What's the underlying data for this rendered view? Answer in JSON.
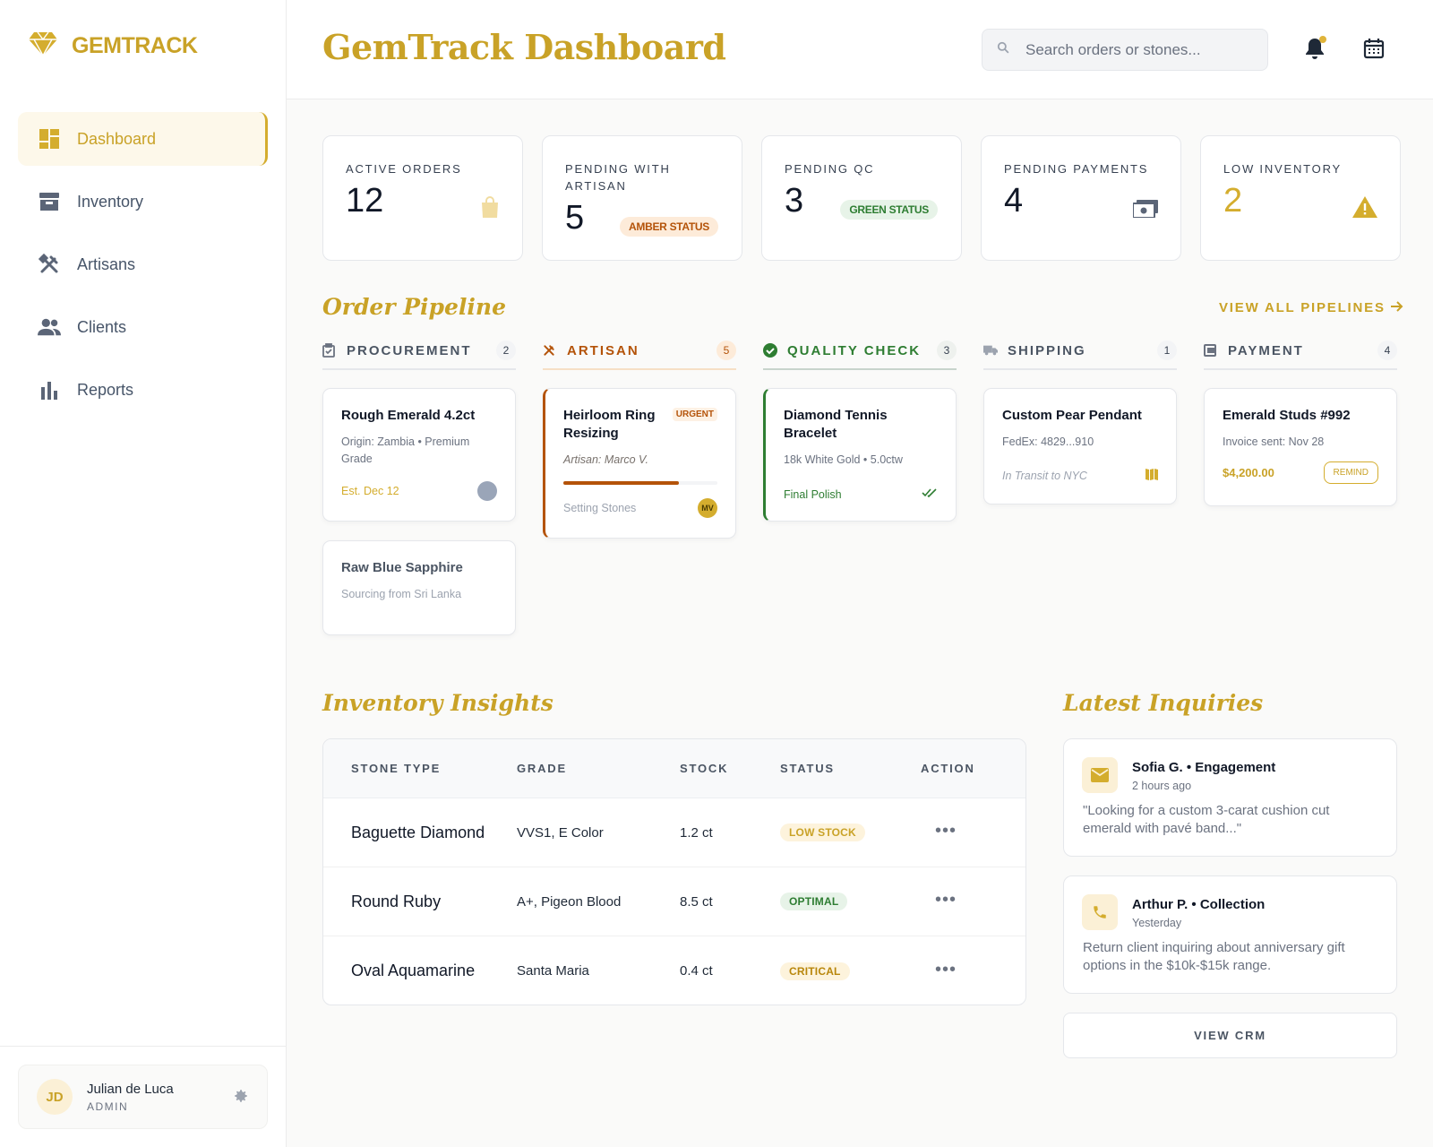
{
  "brand": {
    "name": "GEMTRACK",
    "accent": "#c9a227"
  },
  "sidebar": {
    "items": [
      {
        "label": "Dashboard",
        "icon": "dashboard-icon",
        "active": true
      },
      {
        "label": "Inventory",
        "icon": "archive-icon"
      },
      {
        "label": "Artisans",
        "icon": "tools-icon"
      },
      {
        "label": "Clients",
        "icon": "users-icon"
      },
      {
        "label": "Reports",
        "icon": "bar-chart-icon"
      }
    ],
    "user": {
      "initials": "JD",
      "name": "Julian de Luca",
      "role": "ADMIN"
    }
  },
  "header": {
    "title": "GemTrack Dashboard",
    "search_placeholder": "Search orders or stones..."
  },
  "stats": [
    {
      "label": "ACTIVE ORDERS",
      "value": "12",
      "icon": "shopping-bag-icon"
    },
    {
      "label": "PENDING WITH ARTISAN",
      "value": "5",
      "badge": "AMBER STATUS"
    },
    {
      "label": "PENDING QC",
      "value": "3",
      "badge": "GREEN STATUS"
    },
    {
      "label": "PENDING PAYMENTS",
      "value": "4",
      "icon": "cash-icon"
    },
    {
      "label": "LOW INVENTORY",
      "value": "2",
      "icon": "warning-icon"
    }
  ],
  "pipeline": {
    "title": "Order Pipeline",
    "view_all": "VIEW ALL PIPELINES",
    "columns": [
      {
        "label": "PROCUREMENT",
        "count": "2",
        "color": "#4b5563",
        "cards": [
          {
            "title": "Rough Emerald 4.2ct",
            "sub": "Origin: Zambia • Premium Grade",
            "foot": "Est. Dec 12"
          },
          {
            "title": "Raw Blue Sapphire",
            "sub": "Sourcing from Sri Lanka"
          }
        ]
      },
      {
        "label": "ARTISAN",
        "count": "5",
        "color": "#b45309",
        "cards": [
          {
            "title": "Heirloom Ring Resizing",
            "tag": "URGENT",
            "sub": "Artisan: Marco V.",
            "progress": 0.75,
            "foot": "Setting Stones",
            "avatar": "MV"
          }
        ]
      },
      {
        "label": "QUALITY CHECK",
        "count": "3",
        "color": "#2e7d32",
        "cards": [
          {
            "title": "Diamond Tennis Bracelet",
            "sub": "18k White Gold • 5.0ctw",
            "foot": "Final Polish"
          }
        ]
      },
      {
        "label": "SHIPPING",
        "count": "1",
        "color": "#4b5563",
        "cards": [
          {
            "title": "Custom Pear Pendant",
            "sub": "FedEx: 4829...910",
            "foot": "In Transit to NYC"
          }
        ]
      },
      {
        "label": "PAYMENT",
        "count": "4",
        "color": "#4b5563",
        "cards": [
          {
            "title": "Emerald Studs #992",
            "sub": "Invoice sent: Nov 28",
            "foot": "$4,200.00",
            "button": "REMIND"
          }
        ]
      }
    ]
  },
  "inventory": {
    "title": "Inventory Insights",
    "headers": [
      "STONE TYPE",
      "GRADE",
      "STOCK",
      "STATUS",
      "ACTION"
    ],
    "rows": [
      {
        "stone": "Baguette Diamond",
        "grade": "VVS1, E Color",
        "stock": "1.2 ct",
        "status": "LOW STOCK"
      },
      {
        "stone": "Round Ruby",
        "grade": "A+, Pigeon Blood",
        "stock": "8.5 ct",
        "status": "OPTIMAL"
      },
      {
        "stone": "Oval Aquamarine",
        "grade": "Santa Maria",
        "stock": "0.4 ct",
        "status": "CRITICAL"
      }
    ]
  },
  "inquiries": {
    "title": "Latest Inquiries",
    "items": [
      {
        "name": "Sofia G. • Engagement",
        "time": "2 hours ago",
        "text": "\"Looking for a custom 3-carat cushion cut emerald with pavé band...\"",
        "icon": "mail-icon"
      },
      {
        "name": "Arthur P. • Collection",
        "time": "Yesterday",
        "text": "Return client inquiring about anniversary gift options in the $10k-$15k range.",
        "icon": "phone-icon"
      }
    ],
    "view_crm": "VIEW CRM"
  }
}
